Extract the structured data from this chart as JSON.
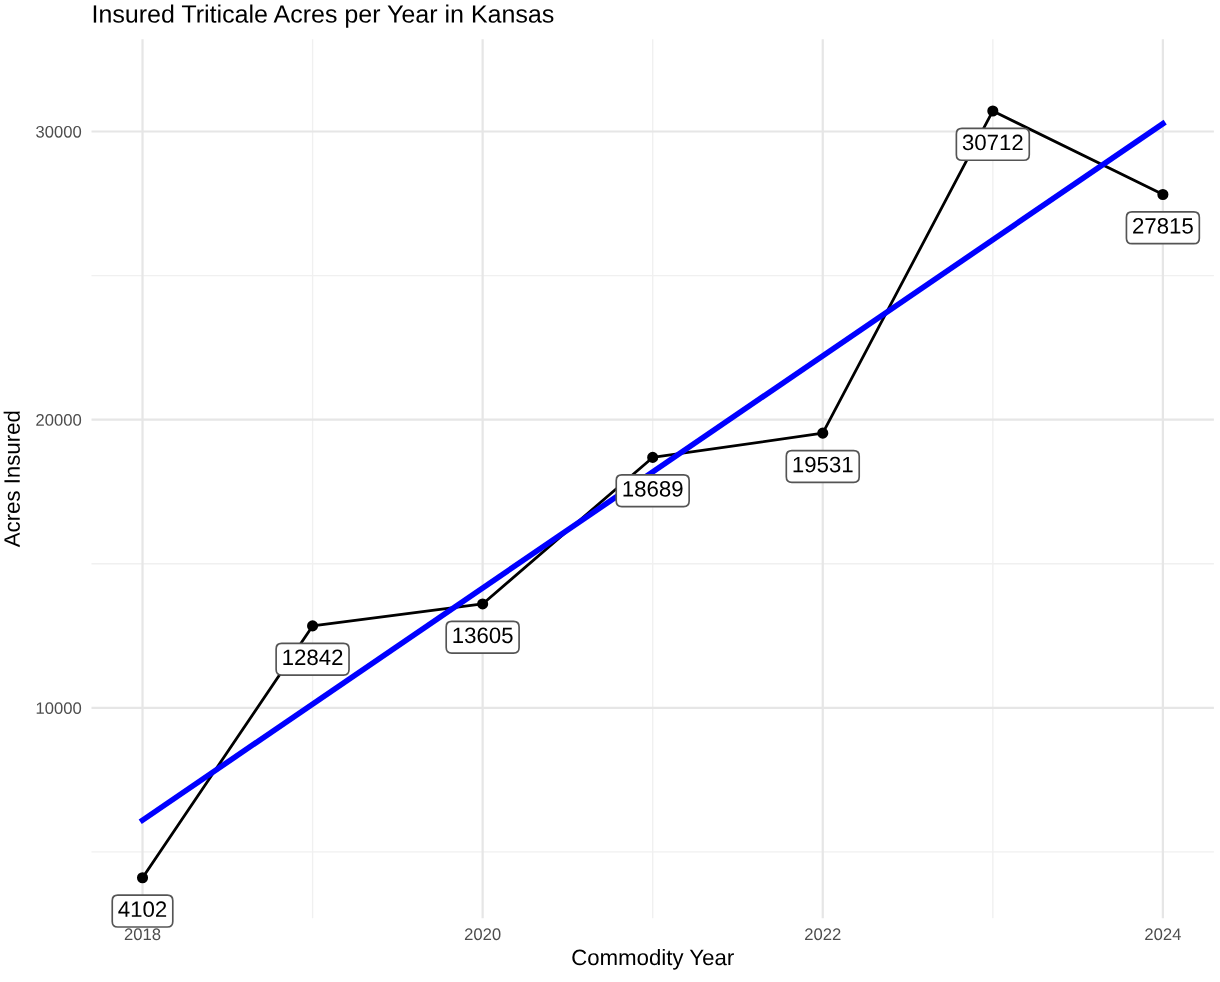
{
  "chart_data": {
    "type": "line",
    "title": "Insured Triticale Acres per Year in Kansas",
    "xlabel": "Commodity Year",
    "ylabel": "Acres Insured",
    "x": [
      2018,
      2019,
      2020,
      2021,
      2022,
      2023,
      2024
    ],
    "series": [
      {
        "color": "#000000",
        "values": [
          4102,
          12842,
          13605,
          18689,
          19531,
          30712,
          27815
        ],
        "marker": "circle",
        "data_labels": true
      },
      {
        "type": "line",
        "color": "#0000ff",
        "x": [
          2018,
          2024
        ],
        "values": [
          6100,
          30270
        ],
        "marker": "none"
      }
    ],
    "xlim": [
      2017.7,
      2024.3
    ],
    "ylim": [
      2700,
      33200
    ],
    "xticks": [
      2018,
      2020,
      2022,
      2024
    ],
    "yticks": [
      10000,
      20000,
      30000
    ],
    "grid": true,
    "legend": false
  }
}
